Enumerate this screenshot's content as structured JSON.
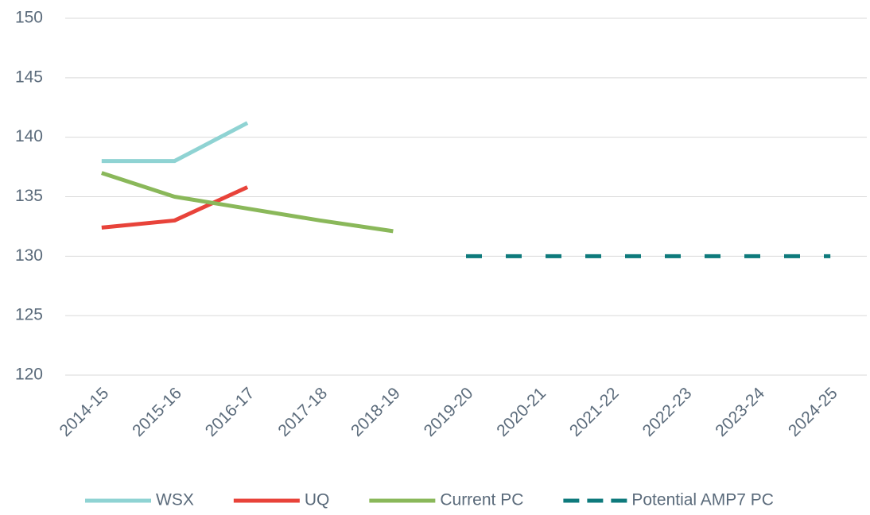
{
  "chart_data": {
    "type": "line",
    "categories": [
      "2014-15",
      "2015-16",
      "2016-17",
      "2017-18",
      "2018-19",
      "2019-20",
      "2020-21",
      "2021-22",
      "2022-23",
      "2023-24",
      "2024-25"
    ],
    "series": [
      {
        "name": "WSX",
        "color": "#8fd3d3",
        "values": [
          138,
          138,
          141.2,
          null,
          null,
          null,
          null,
          null,
          null,
          null,
          null
        ]
      },
      {
        "name": "UQ",
        "color": "#e8433a",
        "values": [
          132.4,
          133,
          135.8,
          null,
          null,
          null,
          null,
          null,
          null,
          null,
          null
        ]
      },
      {
        "name": "Current PC",
        "color": "#8ab85a",
        "values": [
          137,
          135,
          134,
          133,
          132.1,
          null,
          null,
          null,
          null,
          null,
          null
        ]
      },
      {
        "name": "Potential AMP7 PC",
        "color": "#0e7a7c",
        "dashed": true,
        "values": [
          null,
          null,
          null,
          null,
          null,
          130,
          130,
          130,
          130,
          130,
          130
        ]
      }
    ],
    "ylim": [
      120,
      150
    ],
    "yticks": [
      120,
      125,
      130,
      135,
      140,
      145,
      150
    ],
    "grid": true,
    "legend": "bottom"
  }
}
